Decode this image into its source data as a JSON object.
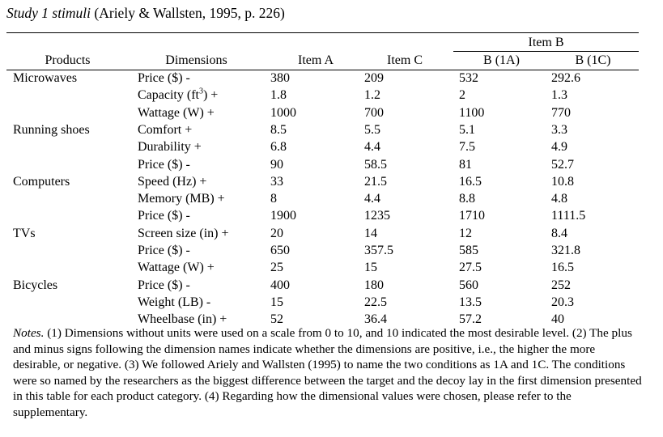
{
  "title": {
    "italic": "Study 1 stimuli",
    "rest": " (Ariely & Wallsten, 1995, p. 226)"
  },
  "headers": {
    "group_b": "Item B",
    "products": "Products",
    "dimensions": "Dimensions",
    "item_a": "Item A",
    "item_c": "Item C",
    "b1a": "B (1A)",
    "b1c": "B (1C)"
  },
  "rows": [
    {
      "product": "Microwaves",
      "dim": "Price ($) -",
      "a": "380",
      "c": "209",
      "b1a": "532",
      "b1c": "292.6"
    },
    {
      "product": "",
      "dim": "Capacity (ft",
      "sup": "3",
      "dim_tail": ") +",
      "a": "1.8",
      "c": "1.2",
      "b1a": "2",
      "b1c": "1.3"
    },
    {
      "product": "",
      "dim": "Wattage (W) +",
      "a": "1000",
      "c": "700",
      "b1a": "1100",
      "b1c": "770"
    },
    {
      "product": "Running shoes",
      "dim": "Comfort +",
      "a": "8.5",
      "c": "5.5",
      "b1a": "5.1",
      "b1c": "3.3"
    },
    {
      "product": "",
      "dim": "Durability +",
      "a": "6.8",
      "c": "4.4",
      "b1a": "7.5",
      "b1c": "4.9"
    },
    {
      "product": "",
      "dim": "Price ($) -",
      "a": "90",
      "c": "58.5",
      "b1a": "81",
      "b1c": "52.7"
    },
    {
      "product": "Computers",
      "dim": "Speed (Hz) +",
      "a": "33",
      "c": "21.5",
      "b1a": "16.5",
      "b1c": "10.8"
    },
    {
      "product": "",
      "dim": "Memory (MB) +",
      "a": "8",
      "c": "4.4",
      "b1a": "8.8",
      "b1c": "4.8"
    },
    {
      "product": "",
      "dim": "Price ($) -",
      "a": "1900",
      "c": "1235",
      "b1a": "1710",
      "b1c": "1111.5"
    },
    {
      "product": "TVs",
      "dim": "Screen size (in) +",
      "a": "20",
      "c": "14",
      "b1a": "12",
      "b1c": "8.4"
    },
    {
      "product": "",
      "dim": "Price ($) -",
      "a": "650",
      "c": "357.5",
      "b1a": "585",
      "b1c": "321.8"
    },
    {
      "product": "",
      "dim": "Wattage (W) +",
      "a": "25",
      "c": "15",
      "b1a": "27.5",
      "b1c": "16.5"
    },
    {
      "product": "Bicycles",
      "dim": "Price ($) -",
      "a": "400",
      "c": "180",
      "b1a": "560",
      "b1c": "252"
    },
    {
      "product": "",
      "dim": "Weight (LB) -",
      "a": "15",
      "c": "22.5",
      "b1a": "13.5",
      "b1c": "20.3"
    },
    {
      "product": "",
      "dim": "Wheelbase (in) +",
      "a": "52",
      "c": "36.4",
      "b1a": "57.2",
      "b1c": "40"
    }
  ],
  "notes": {
    "label": "Notes.",
    "text": " (1) Dimensions without units were used on a scale from 0 to 10, and 10 indicated the most desirable level. (2) The plus and minus signs following the dimension names indicate whether the dimensions are positive, i.e., the higher the more desirable, or negative. (3) We followed Ariely and Wallsten (1995) to name the two conditions as 1A and 1C. The conditions were so named by the researchers as the biggest difference between the target and the decoy lay in the first dimension presented in this table for each product category. (4) Regarding how the dimensional values were chosen, please refer to the supplementary."
  }
}
